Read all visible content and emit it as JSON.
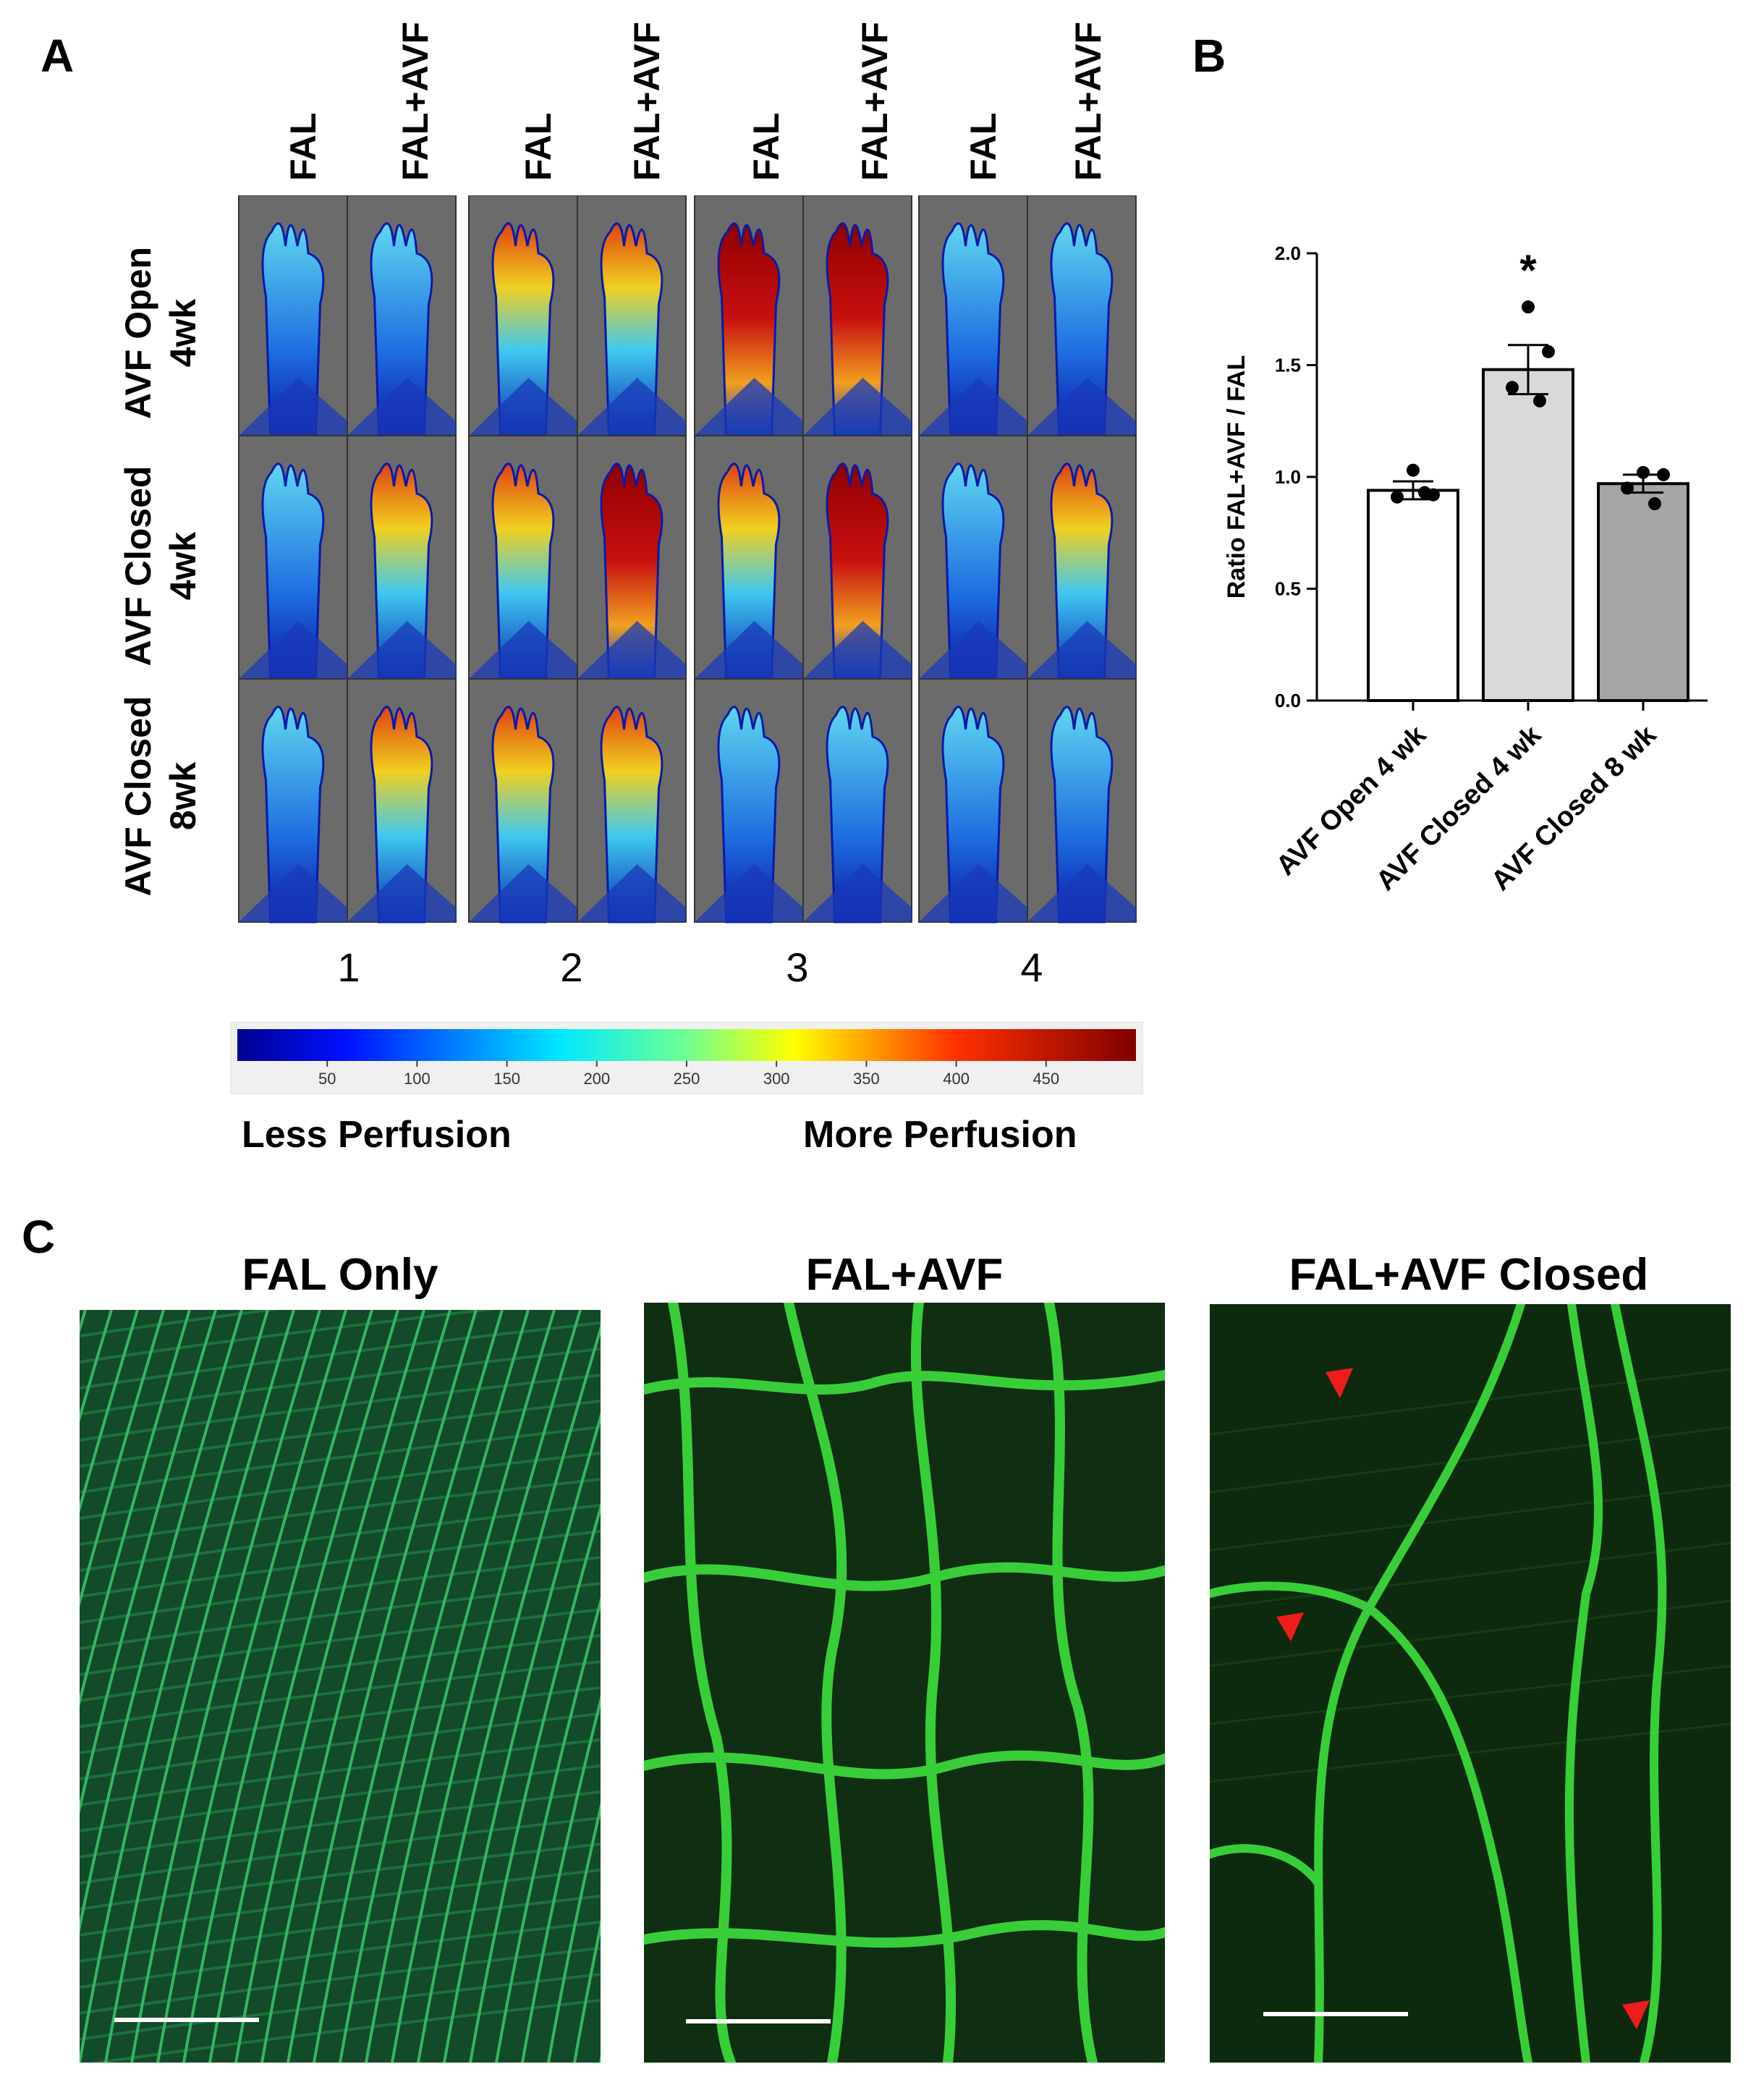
{
  "panels": {
    "a_letter": "A",
    "b_letter": "B",
    "c_letter": "C"
  },
  "panel_a": {
    "column_labels": [
      "FAL",
      "FAL+AVF",
      "FAL",
      "FAL+AVF",
      "FAL",
      "FAL+AVF",
      "FAL",
      "FAL+AVF"
    ],
    "row_labels": [
      {
        "line1": "AVF Open",
        "line2": "4wk"
      },
      {
        "line1": "AVF Closed",
        "line2": "4wk"
      },
      {
        "line1": "AVF Closed",
        "line2": "8wk"
      }
    ],
    "animal_numbers": [
      "1",
      "2",
      "3",
      "4"
    ],
    "colorbar_ticks": [
      "50",
      "100",
      "150",
      "200",
      "250",
      "300",
      "350",
      "400",
      "450"
    ],
    "colorbar_left_label": "Less Perfusion",
    "colorbar_right_label": "More Perfusion",
    "colors": {
      "background": "#6b6b6b",
      "low": "#0a1aa8",
      "mid": "#40c8f0",
      "high": "#a00000"
    }
  },
  "chart_data": {
    "type": "bar",
    "categories": [
      "AVF Open 4 wk",
      "AVF Closed 4 wk",
      "AVF Closed 8 wk"
    ],
    "values": [
      0.94,
      1.48,
      0.97
    ],
    "errors": [
      0.04,
      0.11,
      0.04
    ],
    "points": [
      [
        1.03,
        0.92,
        0.91,
        0.93
      ],
      [
        1.76,
        1.56,
        1.4,
        1.34
      ],
      [
        1.02,
        1.01,
        0.95,
        0.88
      ]
    ],
    "bar_colors": [
      "#ffffff",
      "#d9d9d9",
      "#a6a6a6"
    ],
    "ylabel": "Ratio FAL+AVF / FAL",
    "ylim": [
      0,
      2.0
    ],
    "yticks": [
      "0.0",
      "0.5",
      "1.0",
      "1.5",
      "2.0"
    ],
    "annotation": "*",
    "annotation_category": "AVF Closed 4 wk"
  },
  "panel_c": {
    "titles": [
      "FAL Only",
      "FAL+AVF",
      "FAL+AVF Closed"
    ],
    "colors": {
      "vessel": "#3ee03e",
      "background": "#0f2a10",
      "arrow": "#ee1c1c"
    }
  }
}
